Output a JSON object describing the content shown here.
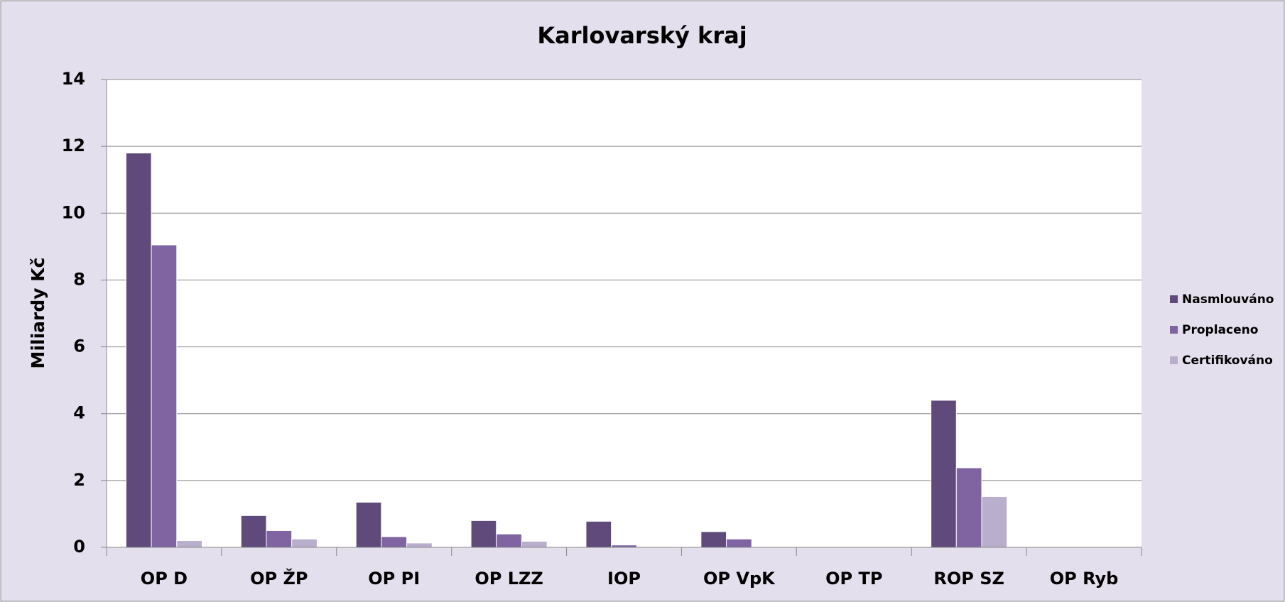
{
  "chart_data": {
    "type": "bar",
    "title": "Karlovarský kraj",
    "y_label": "Miliardy Kč",
    "categories": [
      "OP D",
      "OP ŽP",
      "OP PI",
      "OP LZZ",
      "IOP",
      "OP VpK",
      "OP TP",
      "ROP SZ",
      "OP Ryb"
    ],
    "series": [
      {
        "name": "Nasmlouváno",
        "color": "#604a7b",
        "values": [
          11.8,
          0.95,
          1.35,
          0.8,
          0.78,
          0.47,
          0,
          4.4,
          0
        ]
      },
      {
        "name": "Proplaceno",
        "color": "#8064a2",
        "values": [
          9.05,
          0.5,
          0.32,
          0.4,
          0.07,
          0.25,
          0,
          2.38,
          0
        ]
      },
      {
        "name": "Certifikováno",
        "color": "#b9aecb",
        "values": [
          0.2,
          0.25,
          0.13,
          0.18,
          0.02,
          0.02,
          0,
          1.52,
          0
        ]
      }
    ],
    "ylim": [
      0,
      14
    ],
    "yticks": [
      0,
      2,
      4,
      6,
      8,
      10,
      12,
      14
    ],
    "grid": true,
    "legend": "right"
  }
}
